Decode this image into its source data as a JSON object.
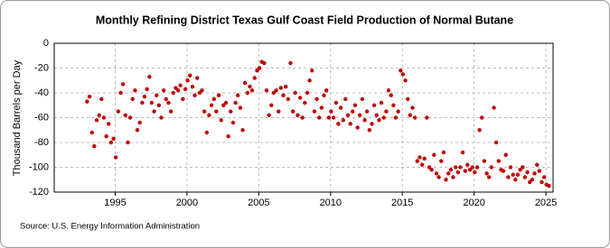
{
  "chart_data": {
    "type": "scatter",
    "title": "Monthly Refining District Texas Gulf Coast Field Production of Normal Butane",
    "y_label": "Thousand Barrels per Day",
    "source": "Source: U.S. Energy Information Administration",
    "color": "#c00000",
    "grid": true,
    "xlim": [
      1990.75,
      2025.5
    ],
    "ylim": [
      -120,
      0
    ],
    "xticks": [
      1995,
      2000,
      2005,
      2010,
      2015,
      2020,
      2025
    ],
    "yticks": [
      0,
      -20,
      -40,
      -60,
      -80,
      -100,
      -120
    ],
    "x": [
      1993.04,
      1993.21,
      1993.38,
      1993.54,
      1993.71,
      1993.88,
      1994.04,
      1994.21,
      1994.38,
      1994.54,
      1994.71,
      1994.88,
      1995.04,
      1995.21,
      1995.38,
      1995.54,
      1995.71,
      1995.88,
      1996.04,
      1996.21,
      1996.38,
      1996.54,
      1996.71,
      1996.88,
      1997.04,
      1997.21,
      1997.38,
      1997.54,
      1997.71,
      1997.88,
      1998.04,
      1998.21,
      1998.38,
      1998.54,
      1998.71,
      1998.88,
      1999.04,
      1999.21,
      1999.38,
      1999.54,
      1999.71,
      1999.88,
      2000.04,
      2000.21,
      2000.38,
      2000.54,
      2000.71,
      2000.88,
      2001.04,
      2001.21,
      2001.38,
      2001.54,
      2001.71,
      2001.88,
      2002.04,
      2002.21,
      2002.38,
      2002.54,
      2002.71,
      2002.88,
      2003.04,
      2003.21,
      2003.38,
      2003.54,
      2003.71,
      2003.88,
      2004.04,
      2004.21,
      2004.38,
      2004.54,
      2004.71,
      2004.88,
      2005.04,
      2005.21,
      2005.38,
      2005.54,
      2005.71,
      2005.88,
      2006.04,
      2006.21,
      2006.38,
      2006.54,
      2006.71,
      2006.88,
      2007.04,
      2007.21,
      2007.38,
      2007.54,
      2007.71,
      2007.88,
      2008.04,
      2008.21,
      2008.38,
      2008.54,
      2008.71,
      2008.88,
      2009.04,
      2009.21,
      2009.38,
      2009.54,
      2009.71,
      2009.88,
      2010.04,
      2010.21,
      2010.38,
      2010.54,
      2010.71,
      2010.88,
      2011.04,
      2011.21,
      2011.38,
      2011.54,
      2011.71,
      2011.88,
      2012.04,
      2012.21,
      2012.38,
      2012.54,
      2012.71,
      2012.88,
      2013.04,
      2013.21,
      2013.38,
      2013.54,
      2013.71,
      2013.88,
      2014.04,
      2014.21,
      2014.38,
      2014.54,
      2014.71,
      2014.88,
      2015.04,
      2015.21,
      2015.38,
      2015.54,
      2015.71,
      2015.88,
      2016.04,
      2016.21,
      2016.38,
      2016.54,
      2016.71,
      2016.88,
      2017.04,
      2017.21,
      2017.38,
      2017.54,
      2017.71,
      2017.88,
      2018.04,
      2018.21,
      2018.38,
      2018.54,
      2018.71,
      2018.88,
      2019.04,
      2019.21,
      2019.38,
      2019.54,
      2019.71,
      2019.88,
      2020.04,
      2020.21,
      2020.38,
      2020.54,
      2020.71,
      2020.88,
      2021.04,
      2021.21,
      2021.38,
      2021.54,
      2021.71,
      2021.88,
      2022.04,
      2022.21,
      2022.38,
      2022.54,
      2022.71,
      2022.88,
      2023.04,
      2023.21,
      2023.38,
      2023.54,
      2023.71,
      2023.88,
      2024.04,
      2024.21,
      2024.38,
      2024.54,
      2024.71,
      2024.88,
      2025.04,
      2025.21
    ],
    "values": [
      -47,
      -43,
      -72,
      -83,
      -62,
      -58,
      -45,
      -60,
      -75,
      -65,
      -80,
      -77,
      -92,
      -55,
      -40,
      -33,
      -58,
      -80,
      -60,
      -45,
      -38,
      -70,
      -64,
      -48,
      -43,
      -37,
      -27,
      -48,
      -55,
      -42,
      -50,
      -60,
      -38,
      -45,
      -48,
      -55,
      -40,
      -36,
      -38,
      -34,
      -45,
      -37,
      -30,
      -26,
      -35,
      -42,
      -28,
      -40,
      -38,
      -55,
      -72,
      -58,
      -50,
      -45,
      -55,
      -42,
      -62,
      -50,
      -48,
      -75,
      -55,
      -64,
      -48,
      -42,
      -52,
      -70,
      -32,
      -40,
      -35,
      -38,
      -28,
      -22,
      -20,
      -15,
      -16,
      -38,
      -58,
      -50,
      -40,
      -38,
      -55,
      -36,
      -42,
      -35,
      -45,
      -16,
      -55,
      -40,
      -58,
      -44,
      -60,
      -48,
      -40,
      -30,
      -22,
      -55,
      -45,
      -60,
      -52,
      -42,
      -38,
      -60,
      -55,
      -60,
      -48,
      -65,
      -52,
      -62,
      -45,
      -58,
      -65,
      -55,
      -50,
      -68,
      -58,
      -45,
      -62,
      -55,
      -70,
      -65,
      -50,
      -58,
      -62,
      -48,
      -60,
      -55,
      -38,
      -42,
      -50,
      -60,
      -55,
      -22,
      -25,
      -30,
      -45,
      -58,
      -52,
      -60,
      -95,
      -92,
      -98,
      -93,
      -60,
      -100,
      -102,
      -90,
      -105,
      -108,
      -95,
      -88,
      -110,
      -105,
      -102,
      -108,
      -100,
      -104,
      -100,
      -88,
      -103,
      -98,
      -102,
      -100,
      -104,
      -100,
      -70,
      -60,
      -95,
      -105,
      -108,
      -100,
      -52,
      -80,
      -95,
      -102,
      -103,
      -90,
      -108,
      -100,
      -106,
      -110,
      -106,
      -102,
      -100,
      -108,
      -104,
      -112,
      -110,
      -105,
      -98,
      -103,
      -112,
      -108,
      -114,
      -115
    ]
  }
}
